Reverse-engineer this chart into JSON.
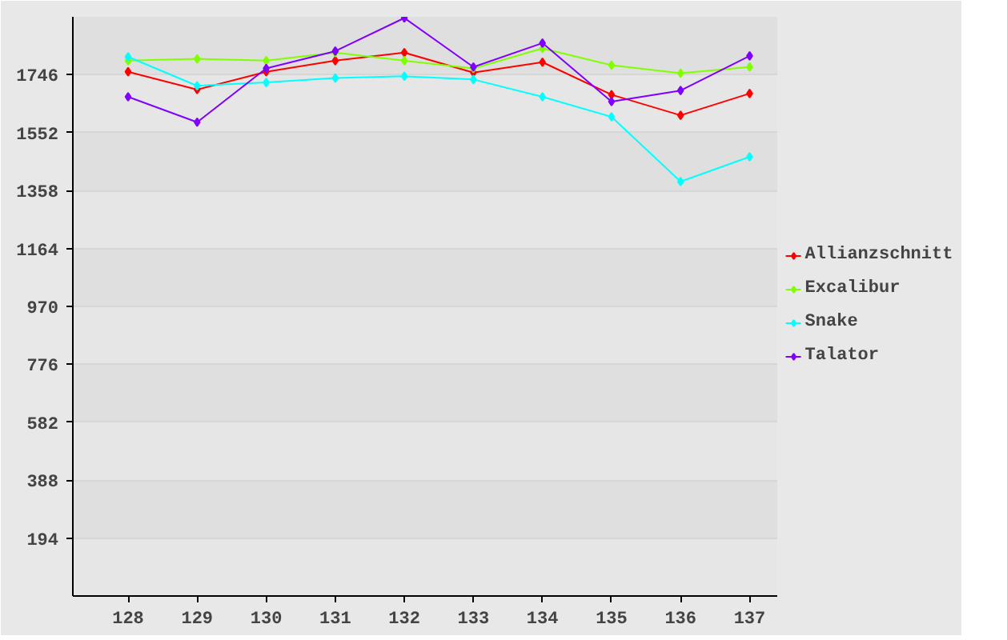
{
  "chart_data": {
    "type": "line",
    "categories": [
      "128",
      "129",
      "130",
      "131",
      "132",
      "133",
      "134",
      "135",
      "136",
      "137"
    ],
    "series": [
      {
        "name": "Allianzschnitt",
        "color": "#ff0000",
        "values": [
          1756,
          1696,
          1756,
          1793,
          1820,
          1753,
          1788,
          1679,
          1610,
          1683
        ]
      },
      {
        "name": "Excalibur",
        "color": "#80ff00",
        "values": [
          1793,
          1799,
          1793,
          1820,
          1793,
          1767,
          1834,
          1778,
          1751,
          1772
        ]
      },
      {
        "name": "Snake",
        "color": "#00ffff",
        "values": [
          1806,
          1709,
          1720,
          1735,
          1741,
          1730,
          1672,
          1605,
          1388,
          1471
        ]
      },
      {
        "name": "Talator",
        "color": "#8000ff",
        "values": [
          1672,
          1587,
          1767,
          1825,
          1936,
          1772,
          1852,
          1656,
          1693,
          1809
        ]
      }
    ],
    "ylim": [
      0,
      1940
    ],
    "yticks": [
      194,
      388,
      582,
      776,
      970,
      1164,
      1358,
      1552,
      1746
    ],
    "grid": "y",
    "legend": "right",
    "marker": "diamond",
    "line_style": "solid"
  }
}
